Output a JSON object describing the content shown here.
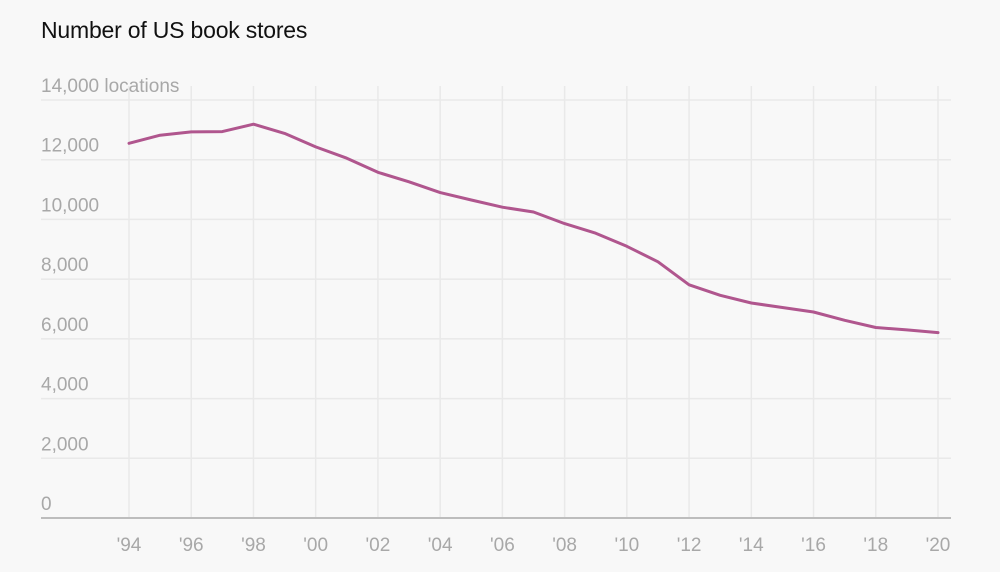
{
  "chart_data": {
    "type": "line",
    "title": "Number of US book stores",
    "xlabel": "",
    "ylabel": "locations",
    "y_unit_label": "14,000 locations",
    "ylim": [
      0,
      14000
    ],
    "xlim": [
      1994,
      2020
    ],
    "grid": true,
    "legend": null,
    "y_ticks": [
      0,
      2000,
      4000,
      6000,
      8000,
      10000,
      12000,
      14000
    ],
    "y_tick_labels": [
      "0",
      "2,000",
      "4,000",
      "6,000",
      "8,000",
      "10,000",
      "12,000",
      "14,000 locations"
    ],
    "x_ticks": [
      1994,
      1996,
      1998,
      2000,
      2002,
      2004,
      2006,
      2008,
      2010,
      2012,
      2014,
      2016,
      2018,
      2020
    ],
    "x_tick_labels": [
      "'94",
      "'96",
      "'98",
      "'00",
      "'02",
      "'04",
      "'06",
      "'08",
      "'10",
      "'12",
      "'14",
      "'16",
      "'18",
      "'20"
    ],
    "x": [
      1994,
      1995,
      1996,
      1997,
      1998,
      1999,
      2000,
      2001,
      2002,
      2003,
      2004,
      2005,
      2006,
      2007,
      2008,
      2009,
      2010,
      2011,
      2012,
      2013,
      2014,
      2015,
      2016,
      2017,
      2018,
      2019,
      2020
    ],
    "series": [
      {
        "name": "US book stores",
        "color": "#b0568e",
        "values": [
          12550,
          12820,
          12930,
          12940,
          13190,
          12880,
          12430,
          12050,
          11580,
          11260,
          10900,
          10650,
          10410,
          10250,
          9860,
          9540,
          9100,
          8580,
          7810,
          7460,
          7200,
          7050,
          6900,
          6620,
          6380,
          6300,
          6210
        ]
      }
    ]
  },
  "colors": {
    "background": "#f8f8f8",
    "line": "#b0568e",
    "grid": "#e9e9e9",
    "axis": "#bdbdbd",
    "tick_text": "#a8a8a8",
    "title_text": "#111111"
  }
}
